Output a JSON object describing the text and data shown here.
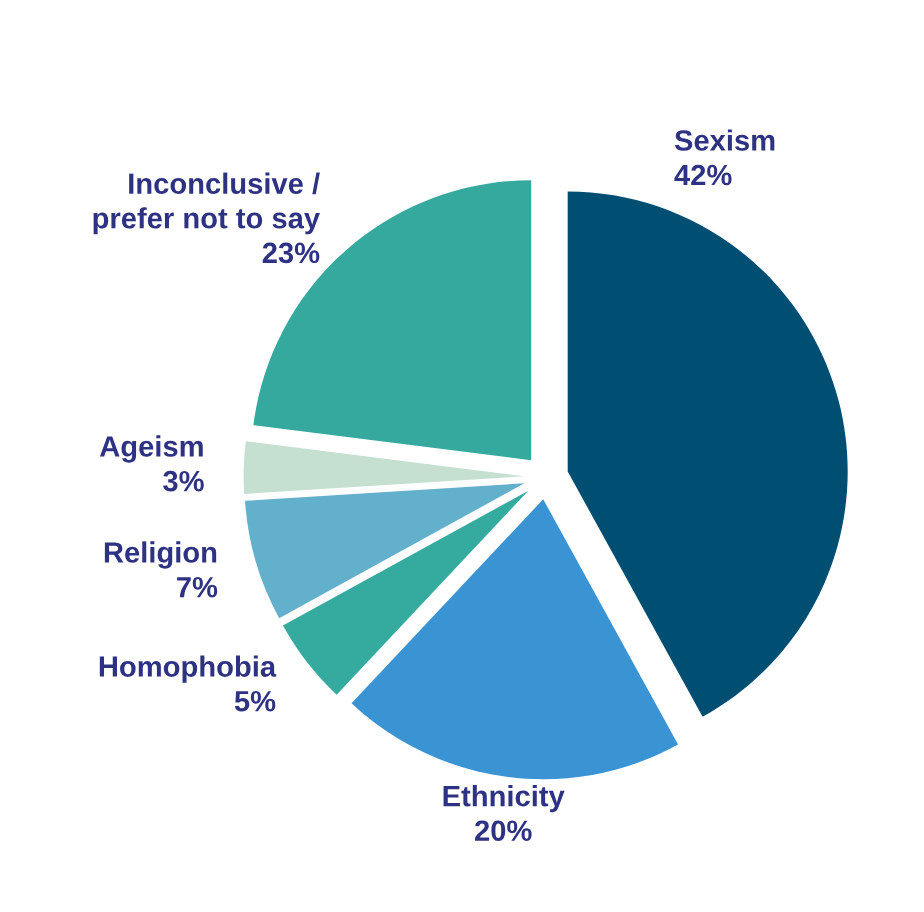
{
  "chart_data": {
    "type": "pie",
    "categories": [
      "Sexism",
      "Ethnicity",
      "Homophobia",
      "Religion",
      "Ageism",
      "Inconclusive /\nprefer not to say"
    ],
    "values": [
      42,
      20,
      5,
      7,
      3,
      23
    ],
    "value_labels": [
      "42%",
      "20%",
      "5%",
      "7%",
      "3%",
      "23%"
    ],
    "colors": [
      "#004f73",
      "#3a93d3",
      "#35ab9f",
      "#63b0cc",
      "#c5dfd0",
      "#35a99e"
    ],
    "legend": false
  }
}
